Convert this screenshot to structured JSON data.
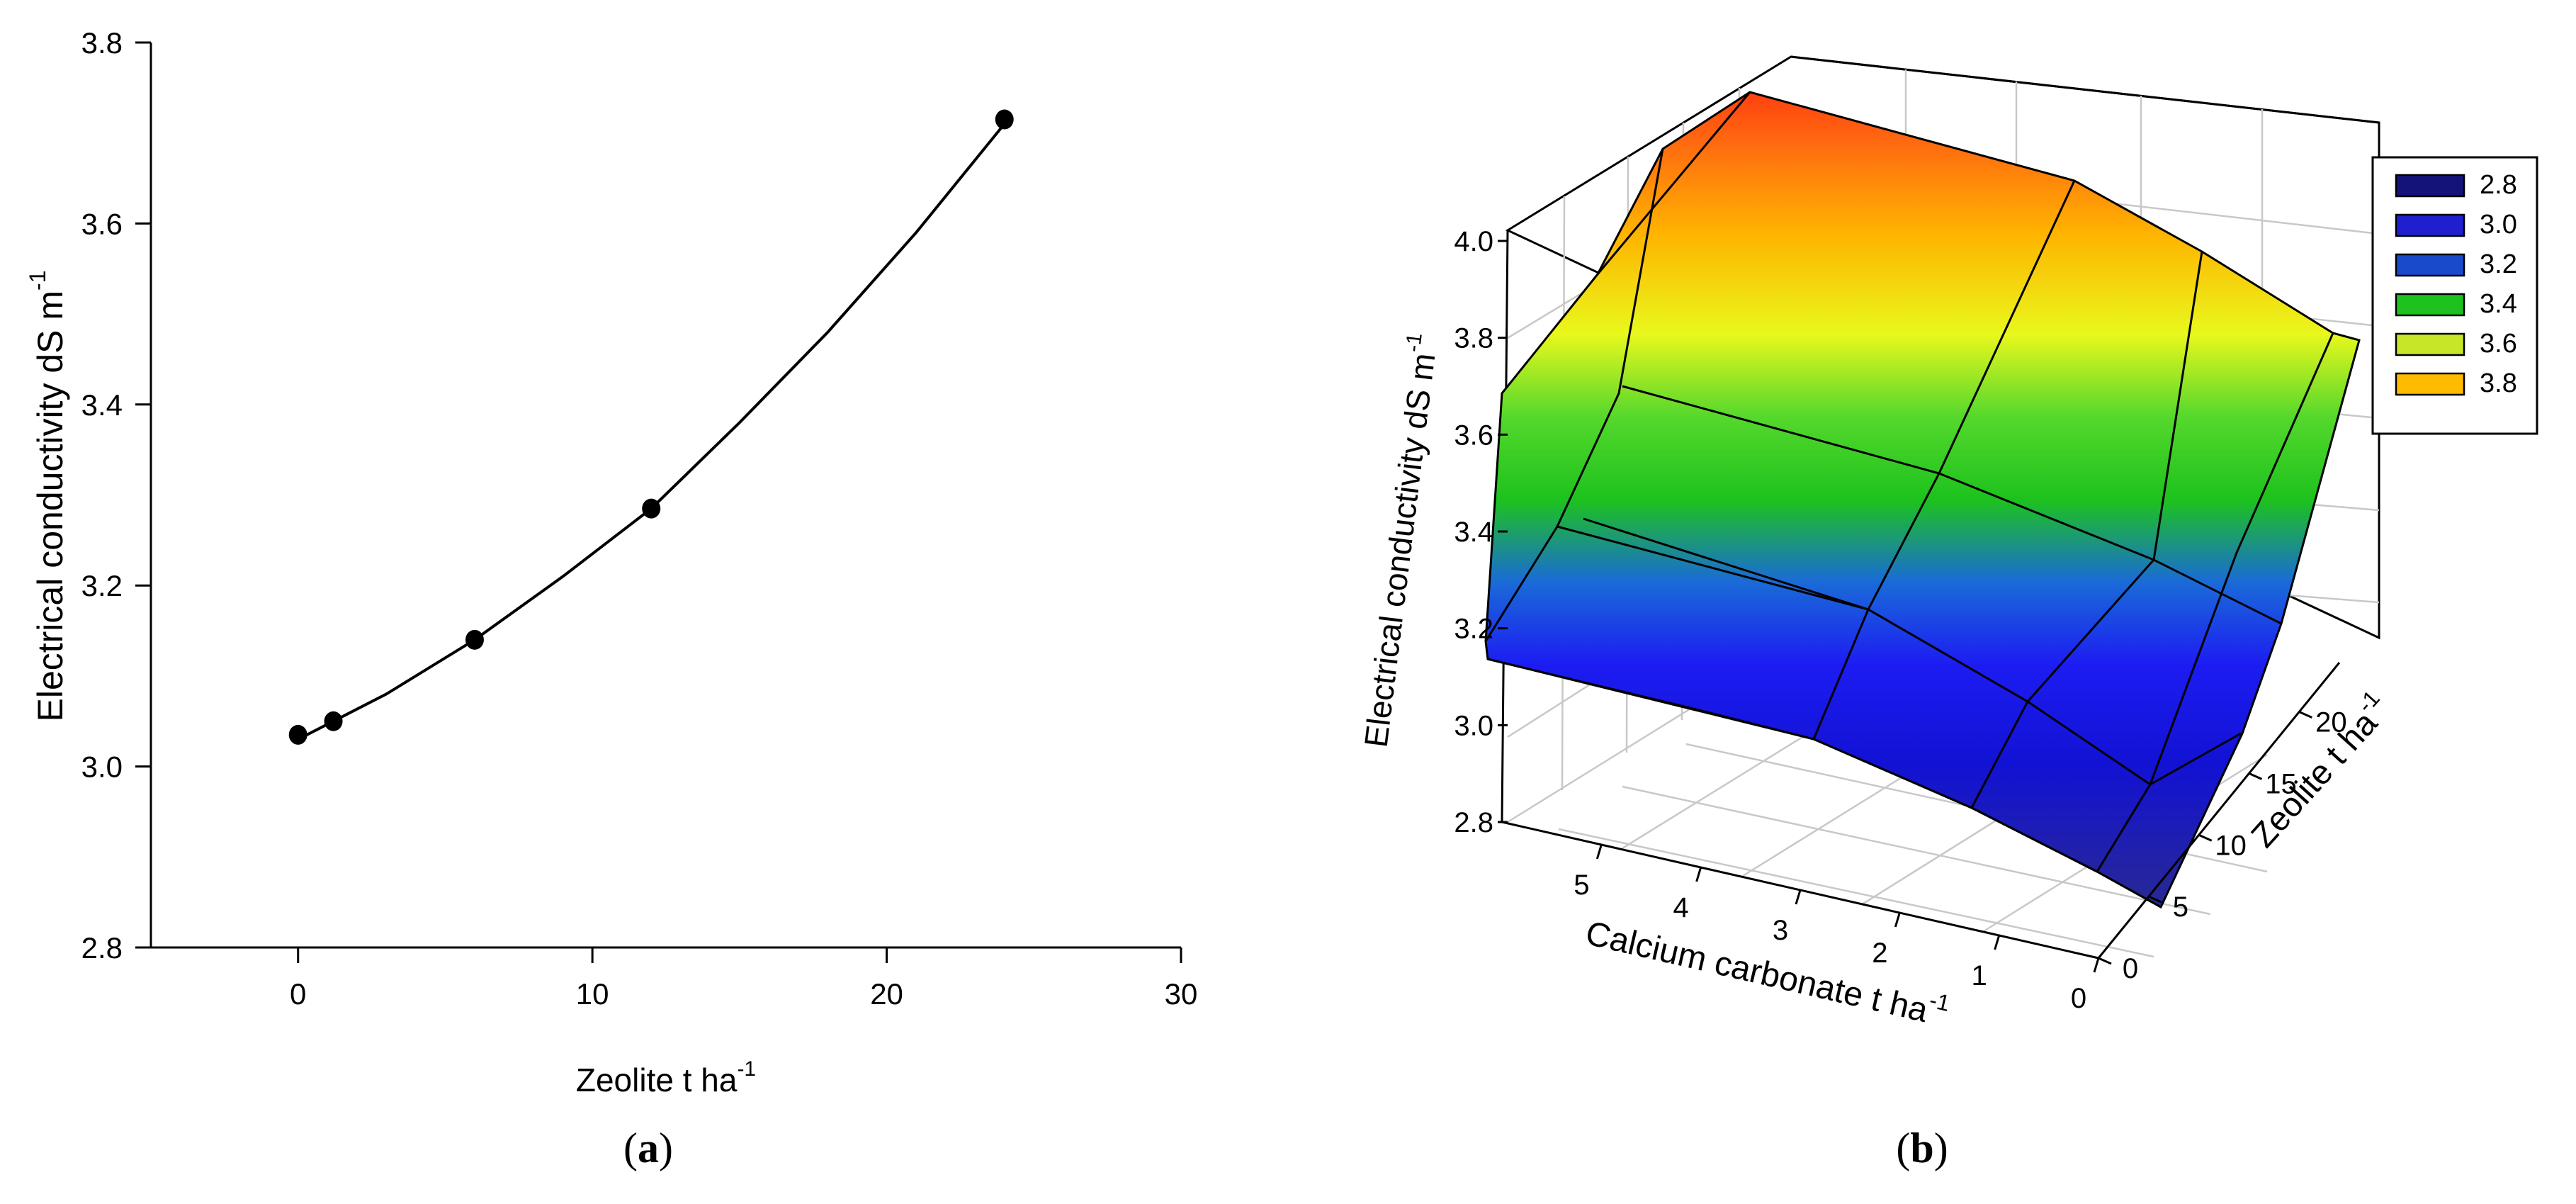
{
  "panels": {
    "a": {
      "caption": "a"
    },
    "b": {
      "caption": "b"
    }
  },
  "chart_data": [
    {
      "panel": "a",
      "type": "line",
      "xlabel": "Zeolite t ha",
      "xlabel_sup": "-1",
      "ylabel": "Electrical conductivity dS m",
      "ylabel_sup": "-1",
      "xlim": [
        -5,
        30
      ],
      "ylim": [
        2.8,
        3.8
      ],
      "xticks": [
        "0",
        "10",
        "20",
        "30"
      ],
      "xtick_values": [
        0,
        10,
        20,
        30
      ],
      "yticks": [
        "2.8",
        "3.0",
        "3.2",
        "3.4",
        "3.6",
        "3.8"
      ],
      "ytick_values": [
        2.8,
        3.0,
        3.2,
        3.4,
        3.6,
        3.8
      ],
      "grid": false,
      "series": [
        {
          "kind": "points",
          "x": [
            0,
            1.2,
            6,
            12,
            24
          ],
          "y": [
            3.035,
            3.05,
            3.14,
            3.285,
            3.715
          ]
        },
        {
          "kind": "fit-curve",
          "x": [
            0,
            3,
            6,
            9,
            12,
            15,
            18,
            21,
            24
          ],
          "y": [
            3.03,
            3.08,
            3.14,
            3.21,
            3.285,
            3.38,
            3.48,
            3.59,
            3.71
          ]
        }
      ]
    },
    {
      "panel": "b",
      "type": "surface",
      "xlabel": "Calcium carbonate t ha",
      "xlabel_sup": "-1",
      "ylabel": "Zeolite t ha",
      "ylabel_sup": "-1",
      "zlabel": "Electrical conductivity dS m",
      "zlabel_sup": "-1",
      "x_ticks": [
        "0",
        "1",
        "2",
        "3",
        "4",
        "5"
      ],
      "y_ticks": [
        "0",
        "5",
        "10",
        "15",
        "20"
      ],
      "z_ticks": [
        "2.8",
        "3.0",
        "3.2",
        "3.4",
        "3.6",
        "3.8",
        "4.0"
      ],
      "xlim": [
        0,
        6
      ],
      "ylim": [
        0,
        24
      ],
      "zlim": [
        2.8,
        4.0
      ],
      "grid": true,
      "legend": {
        "position": "right",
        "entries": [
          {
            "label": "2.8",
            "color": "#13137a"
          },
          {
            "label": "3.0",
            "color": "#1f1fd0"
          },
          {
            "label": "3.2",
            "color": "#1a4acc"
          },
          {
            "label": "3.4",
            "color": "#1ec21e"
          },
          {
            "label": "3.6",
            "color": "#c8e628"
          },
          {
            "label": "3.8",
            "color": "#ffbb00"
          }
        ]
      },
      "grid_x": [
        0,
        1.5,
        3,
        4.5,
        6
      ],
      "grid_y": [
        0,
        6,
        12,
        24
      ],
      "z_values": [
        [
          2.9,
          3.0,
          3.06,
          3.1,
          3.18
        ],
        [
          3.05,
          3.1,
          3.12,
          3.15,
          3.25
        ],
        [
          3.32,
          3.38,
          3.42,
          3.47,
          3.58
        ],
        [
          3.76,
          3.84,
          3.88,
          3.95,
          4.0
        ]
      ]
    }
  ]
}
